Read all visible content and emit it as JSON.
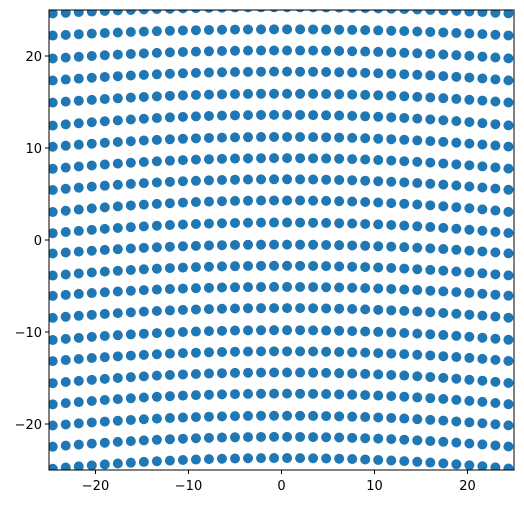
{
  "chart_data": {
    "type": "scatter",
    "title": "",
    "xlabel": "",
    "ylabel": "",
    "xlim": [
      -25,
      25
    ],
    "ylim": [
      -25,
      25
    ],
    "grid": false,
    "legend": null,
    "marker_color": "#1f77b4",
    "x_ticks": [
      -20,
      -10,
      0,
      10,
      20
    ],
    "y_ticks": [
      -20,
      -10,
      0,
      10,
      20
    ],
    "x_tick_labels": [
      "−20",
      "−10",
      "0",
      "10",
      "20"
    ],
    "y_tick_labels": [
      "−20",
      "−10",
      "0",
      "10",
      "20"
    ],
    "points_description_grid": {
      "x_start": -26,
      "x_step": 1.4,
      "x_count": 38,
      "rows_y_at_center": [
        25.3,
        22.9,
        20.6,
        18.3,
        15.9,
        13.6,
        11.2,
        8.9,
        6.6,
        4.3,
        1.9,
        -0.5,
        -2.8,
        -5.1,
        -7.4,
        -9.8,
        -12.1,
        -14.4,
        -16.7,
        -19.1,
        -21.4,
        -23.7
      ],
      "rows_y_at_edge": [
        24.6,
        22.2,
        19.7,
        17.3,
        14.9,
        12.4,
        10.1,
        7.7,
        5.4,
        3.0,
        0.7,
        -1.5,
        -3.9,
        -6.1,
        -8.5,
        -10.9,
        -13.2,
        -15.6,
        -17.9,
        -20.2,
        -22.5,
        -24.9
      ]
    }
  }
}
